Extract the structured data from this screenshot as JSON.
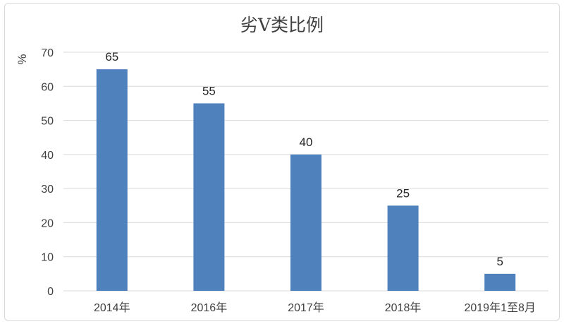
{
  "chart_data": {
    "type": "bar",
    "title": "劣V类比例",
    "ylabel": "%",
    "categories": [
      "2014年",
      "2016年",
      "2017年",
      "2018年",
      "2019年1至8月"
    ],
    "values": [
      65,
      55,
      40,
      25,
      5
    ],
    "ylim": [
      0,
      70
    ],
    "yticks": [
      0,
      10,
      20,
      30,
      40,
      50,
      60,
      70
    ],
    "grid": true,
    "legend": "none",
    "bar_color": "#4f81bd",
    "grid_color": "#d9d9d9"
  }
}
